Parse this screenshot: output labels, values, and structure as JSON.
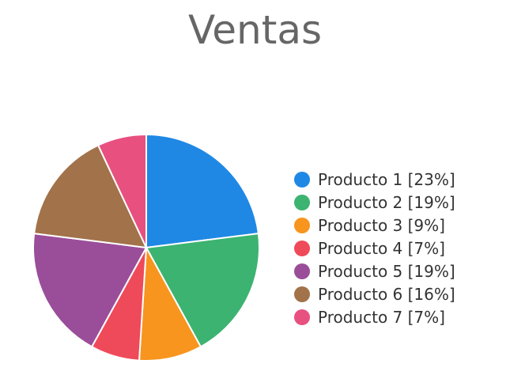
{
  "chart_data": {
    "type": "pie",
    "title": "Ventas",
    "categories": [
      "Producto 1",
      "Producto 2",
      "Producto 3",
      "Producto 4",
      "Producto 5",
      "Producto 6",
      "Producto 7"
    ],
    "values": [
      23,
      19,
      9,
      7,
      19,
      16,
      7
    ],
    "legend_labels": [
      "Producto 1 [23%]",
      "Producto 2 [19%]",
      "Producto 3 [9%]",
      "Producto 4 [7%]",
      "Producto 5 [19%]",
      "Producto 6 [16%]",
      "Producto 7 [7%]"
    ],
    "colors": [
      "#1f88e5",
      "#3cb371",
      "#f7951e",
      "#ef4a5a",
      "#9a4e99",
      "#a2724a",
      "#e8507f"
    ],
    "legend_position": "right"
  }
}
